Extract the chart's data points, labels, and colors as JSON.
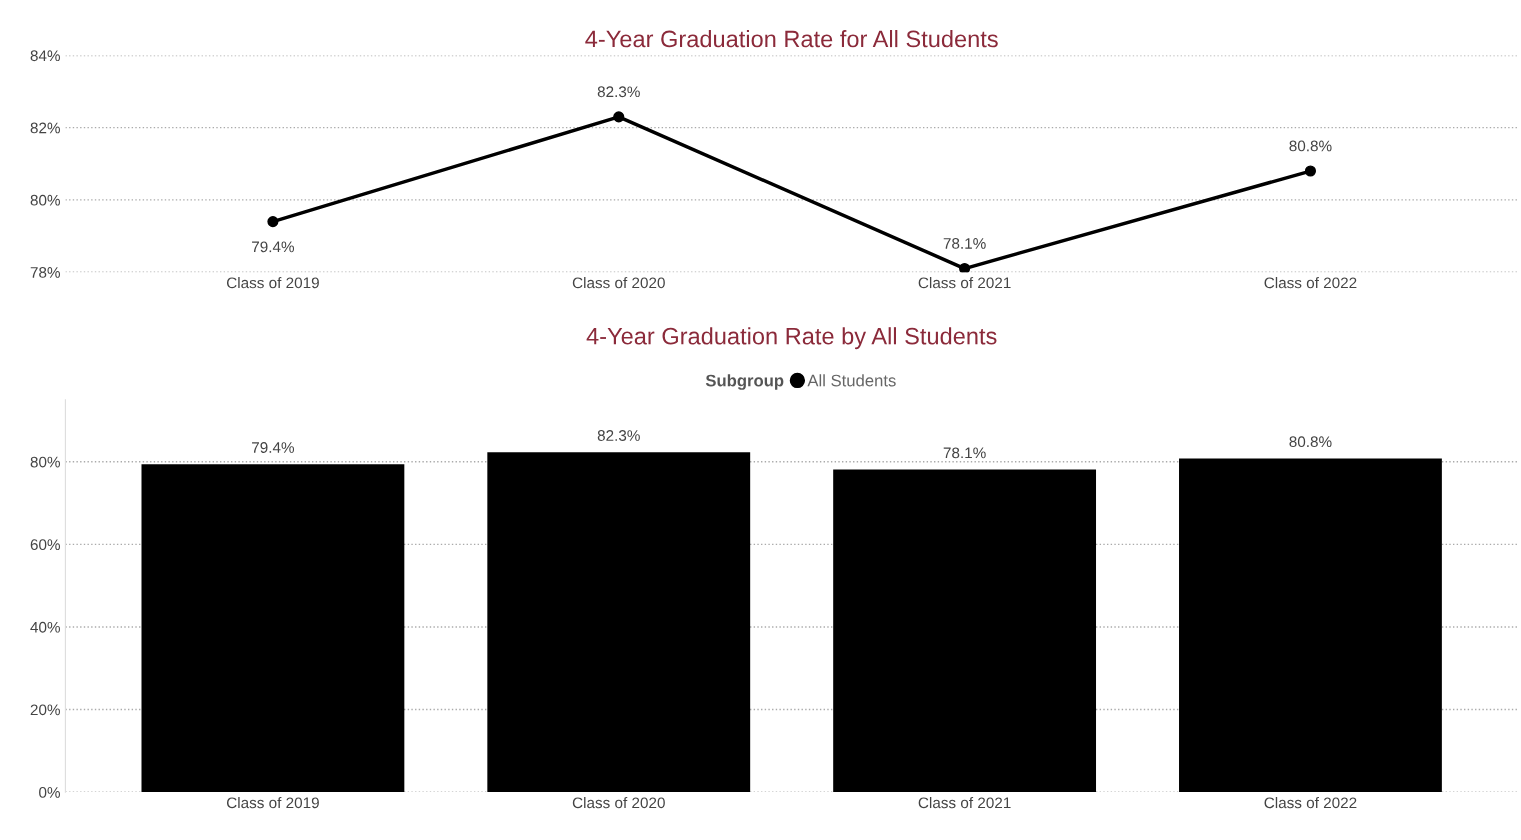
{
  "chart_data": [
    {
      "type": "line",
      "title": "4-Year Graduation Rate for All Students",
      "categories": [
        "Class of 2019",
        "Class of 2020",
        "Class of 2021",
        "Class of 2022"
      ],
      "series": [
        {
          "color": "#000000",
          "values": [
            79.4,
            82.3,
            78.1,
            80.8
          ],
          "value_labels": [
            "79.4%",
            "82.3%",
            "78.1%",
            "80.8%"
          ]
        }
      ],
      "ylim": [
        78,
        84
      ],
      "yticks": [
        {
          "value": 78,
          "label": "78%"
        },
        {
          "value": 80,
          "label": "80%"
        },
        {
          "value": 82,
          "label": "82%"
        },
        {
          "value": 84,
          "label": "84%"
        }
      ],
      "grid": "y",
      "marker": "circle",
      "line_style": "solid",
      "legend": false
    },
    {
      "type": "bar",
      "title": "4-Year Graduation Rate by All Students",
      "legend_title": "Subgroup",
      "categories": [
        "Class of 2019",
        "Class of 2020",
        "Class of 2021",
        "Class of 2022"
      ],
      "series": [
        {
          "name": "All Students",
          "color": "#000000",
          "values": [
            79.4,
            82.3,
            78.1,
            80.8
          ],
          "value_labels": [
            "79.4%",
            "82.3%",
            "78.1%",
            "80.8%"
          ]
        }
      ],
      "ylim": [
        0,
        95
      ],
      "yticks": [
        {
          "value": 0,
          "label": "0%"
        },
        {
          "value": 20,
          "label": "20%"
        },
        {
          "value": 40,
          "label": "40%"
        },
        {
          "value": 60,
          "label": "60%"
        },
        {
          "value": 80,
          "label": "80%"
        }
      ],
      "grid": "y",
      "legend": "top"
    }
  ]
}
